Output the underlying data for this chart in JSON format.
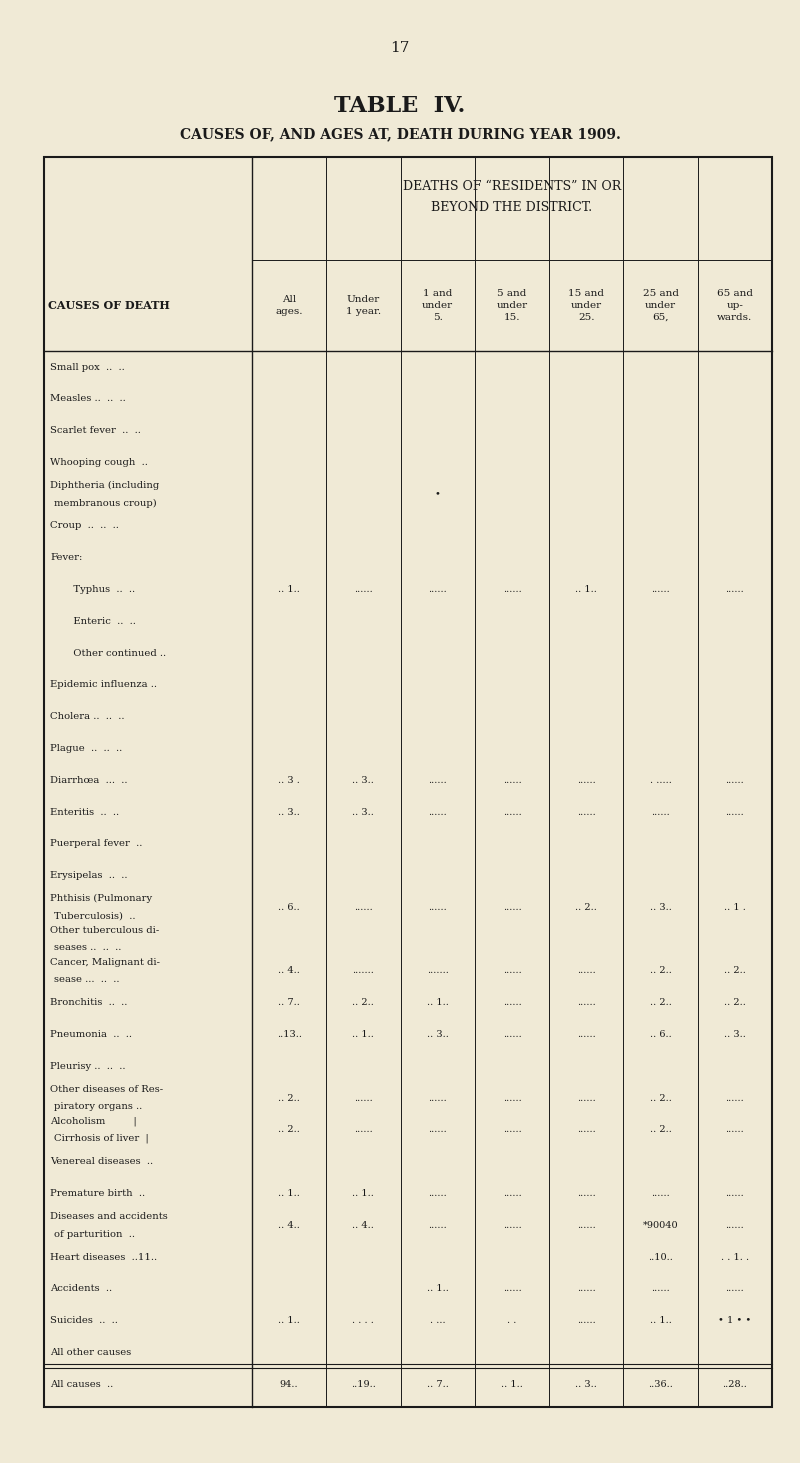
{
  "page_number": "17",
  "title_line1": "TABLE  IV.",
  "title_line2": "CAUSES OF, AND AGES AT, DEATH DURING YEAR 1909.",
  "col_header_top": "DEATHS OF “RESIDENTS” IN OR\nBEYOND THE DISTRICT.",
  "col_headers": [
    "All\nages.",
    "Under\n1 year.",
    "1 and\nunder\n5.",
    "5 and\nunder\n15.",
    "15 and\nunder\n25.",
    "25 and\nunder\n65,",
    "65 and\nup-\nwards."
  ],
  "row_header": "CAUSES OF DEATH",
  "rows": [
    [
      "Small pox  ..  ..",
      "",
      "",
      "",
      "",
      "",
      "",
      ""
    ],
    [
      "Measles ..  ..  ..",
      "",
      "",
      "",
      "",
      "",
      "",
      ""
    ],
    [
      "Scarlet fever  ..  ..",
      "",
      "",
      "",
      "",
      "",
      "",
      ""
    ],
    [
      "Whooping cough  ..",
      "",
      "",
      "",
      "",
      "",
      "",
      ""
    ],
    [
      "Diphtheria (including\n  membranous croup)",
      "",
      "",
      "•",
      "",
      "",
      "",
      ""
    ],
    [
      "Croup  ..  ..  ..",
      "",
      "",
      "",
      "",
      "",
      "",
      ""
    ],
    [
      "Fever:",
      "",
      "",
      "",
      "",
      "",
      "",
      ""
    ],
    [
      "   Typhus  ..  ..",
      ".. 1..",
      "......",
      "......",
      "......",
      ".. 1..",
      "......",
      "......"
    ],
    [
      "   Enteric  ..  ..",
      "",
      "",
      "",
      "",
      "",
      "",
      ""
    ],
    [
      "   Other continued ..",
      "",
      "",
      "",
      "",
      "",
      "",
      ""
    ],
    [
      "Epidemic influenza ..",
      "",
      "",
      "",
      "",
      "",
      "",
      ""
    ],
    [
      "Cholera ..  ..  ..",
      "",
      "",
      "",
      "",
      "",
      "",
      ""
    ],
    [
      "Plague  ..  ..  ..",
      "",
      "",
      "",
      "",
      "",
      "",
      ""
    ],
    [
      "Diarrhœa  ...  ..",
      ".. 3 .",
      ".. 3..",
      "......",
      "......",
      "......",
      ". .....",
      "......"
    ],
    [
      "Enteritis  ..  ..",
      ".. 3..",
      ".. 3..",
      "......",
      "......",
      "......",
      "......",
      "......"
    ],
    [
      "Puerperal fever  ..",
      "",
      "",
      "",
      "",
      "",
      "",
      ""
    ],
    [
      "Erysipelas  ..  ..",
      "",
      "",
      "",
      "",
      "",
      "",
      ""
    ],
    [
      "Phthisis (Pulmonary\n  Tuberculosis)  ..",
      ".. 6..",
      "......",
      "......",
      "......",
      ".. 2..",
      ".. 3..",
      ".. 1 ."
    ],
    [
      "Other tuberculous di-\n  seases ..  ..  ..",
      "",
      "",
      "",
      "",
      "",
      "",
      ""
    ],
    [
      "Cancer, Malignant di-\n  sease ...  ..  ..",
      ".. 4..",
      ".......",
      ".......",
      "......",
      "......",
      ".. 2..",
      ".. 2.."
    ],
    [
      "Bronchitis  ..  ..",
      ".. 7..",
      ".. 2..",
      ".. 1..",
      "......",
      "......",
      ".. 2..",
      ".. 2.."
    ],
    [
      "Pneumonia  ..  ..",
      "..13..",
      ".. 1..",
      ".. 3..",
      "......",
      "......",
      ".. 6..",
      ".. 3.."
    ],
    [
      "Pleurisy ..  ..  ..",
      "",
      "",
      "",
      "",
      "",
      "",
      ""
    ],
    [
      "Other diseases of Res-\n  piratory organs ..",
      ".. 2..",
      "......",
      "......",
      "......",
      "......",
      ".. 2..",
      "......"
    ],
    [
      "Alcoholism         |\nCirrhosis of liver  |",
      ".. 2..",
      "......",
      "......",
      "......",
      "......",
      ".. 2..",
      "......"
    ],
    [
      "Venereal diseases  ..",
      "",
      "",
      "",
      "",
      "",
      "",
      ""
    ],
    [
      "Premature birth  ..",
      ".. 1..",
      ".. 1..",
      "......",
      "......",
      "......",
      "......",
      "......"
    ],
    [
      "Diseases and accidents\n  of parturition  ..",
      ".. 4..",
      ".. 4..",
      "......",
      "......",
      "......",
      "*90040",
      "......"
    ],
    [
      "Heart diseases  ..11..",
      "",
      "",
      "",
      "",
      "",
      "..10..",
      ". . 1. ."
    ],
    [
      "Accidents  ..",
      "",
      "",
      ".. 1..",
      "......",
      "......",
      "......",
      "......"
    ],
    [
      "Suicides  ..  ..",
      ".. 1..",
      ". . . .",
      ". ...",
      ". .",
      "......",
      ".. 1..",
      "• 1 • •"
    ],
    [
      "All other causes",
      "",
      "",
      "",
      "",
      "",
      "",
      ""
    ],
    [
      "All causes  ..",
      "94..",
      "..19..",
      ".. 7..",
      ".. 1..",
      ".. 3..",
      "..36..",
      "..28.."
    ]
  ],
  "bg_color": "#f0ead6",
  "text_color": "#1a1a1a",
  "line_color": "#1a1a1a"
}
